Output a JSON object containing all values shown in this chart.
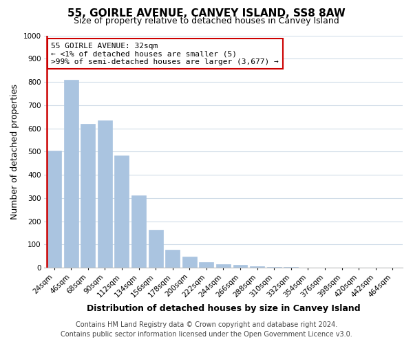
{
  "title": "55, GOIRLE AVENUE, CANVEY ISLAND, SS8 8AW",
  "subtitle": "Size of property relative to detached houses in Canvey Island",
  "xlabel": "Distribution of detached houses by size in Canvey Island",
  "ylabel": "Number of detached properties",
  "bar_labels": [
    "24sqm",
    "46sqm",
    "68sqm",
    "90sqm",
    "112sqm",
    "134sqm",
    "156sqm",
    "178sqm",
    "200sqm",
    "222sqm",
    "244sqm",
    "266sqm",
    "288sqm",
    "310sqm",
    "332sqm",
    "354sqm",
    "376sqm",
    "398sqm",
    "420sqm",
    "442sqm",
    "464sqm"
  ],
  "bar_heights": [
    505,
    810,
    620,
    635,
    482,
    312,
    162,
    78,
    47,
    25,
    15,
    12,
    5,
    3,
    2,
    1,
    1,
    1,
    0,
    0,
    0
  ],
  "bar_color": "#aac4e0",
  "bar_edge_color": "#aac4e0",
  "marker_bar_index": 0,
  "marker_line_color": "#cc0000",
  "ylim": [
    0,
    1000
  ],
  "yticks": [
    0,
    100,
    200,
    300,
    400,
    500,
    600,
    700,
    800,
    900,
    1000
  ],
  "annotation_title": "55 GOIRLE AVENUE: 32sqm",
  "annotation_line1": "← <1% of detached houses are smaller (5)",
  "annotation_line2": ">99% of semi-detached houses are larger (3,677) →",
  "annotation_box_facecolor": "#ffffff",
  "annotation_box_edgecolor": "#cc0000",
  "footer_line1": "Contains HM Land Registry data © Crown copyright and database right 2024.",
  "footer_line2": "Contains public sector information licensed under the Open Government Licence v3.0.",
  "bg_color": "#ffffff",
  "grid_color": "#d0dce8",
  "title_fontsize": 11,
  "subtitle_fontsize": 9,
  "xlabel_fontsize": 9,
  "ylabel_fontsize": 9,
  "tick_fontsize": 7.5,
  "footer_fontsize": 7,
  "annotation_fontsize": 8
}
